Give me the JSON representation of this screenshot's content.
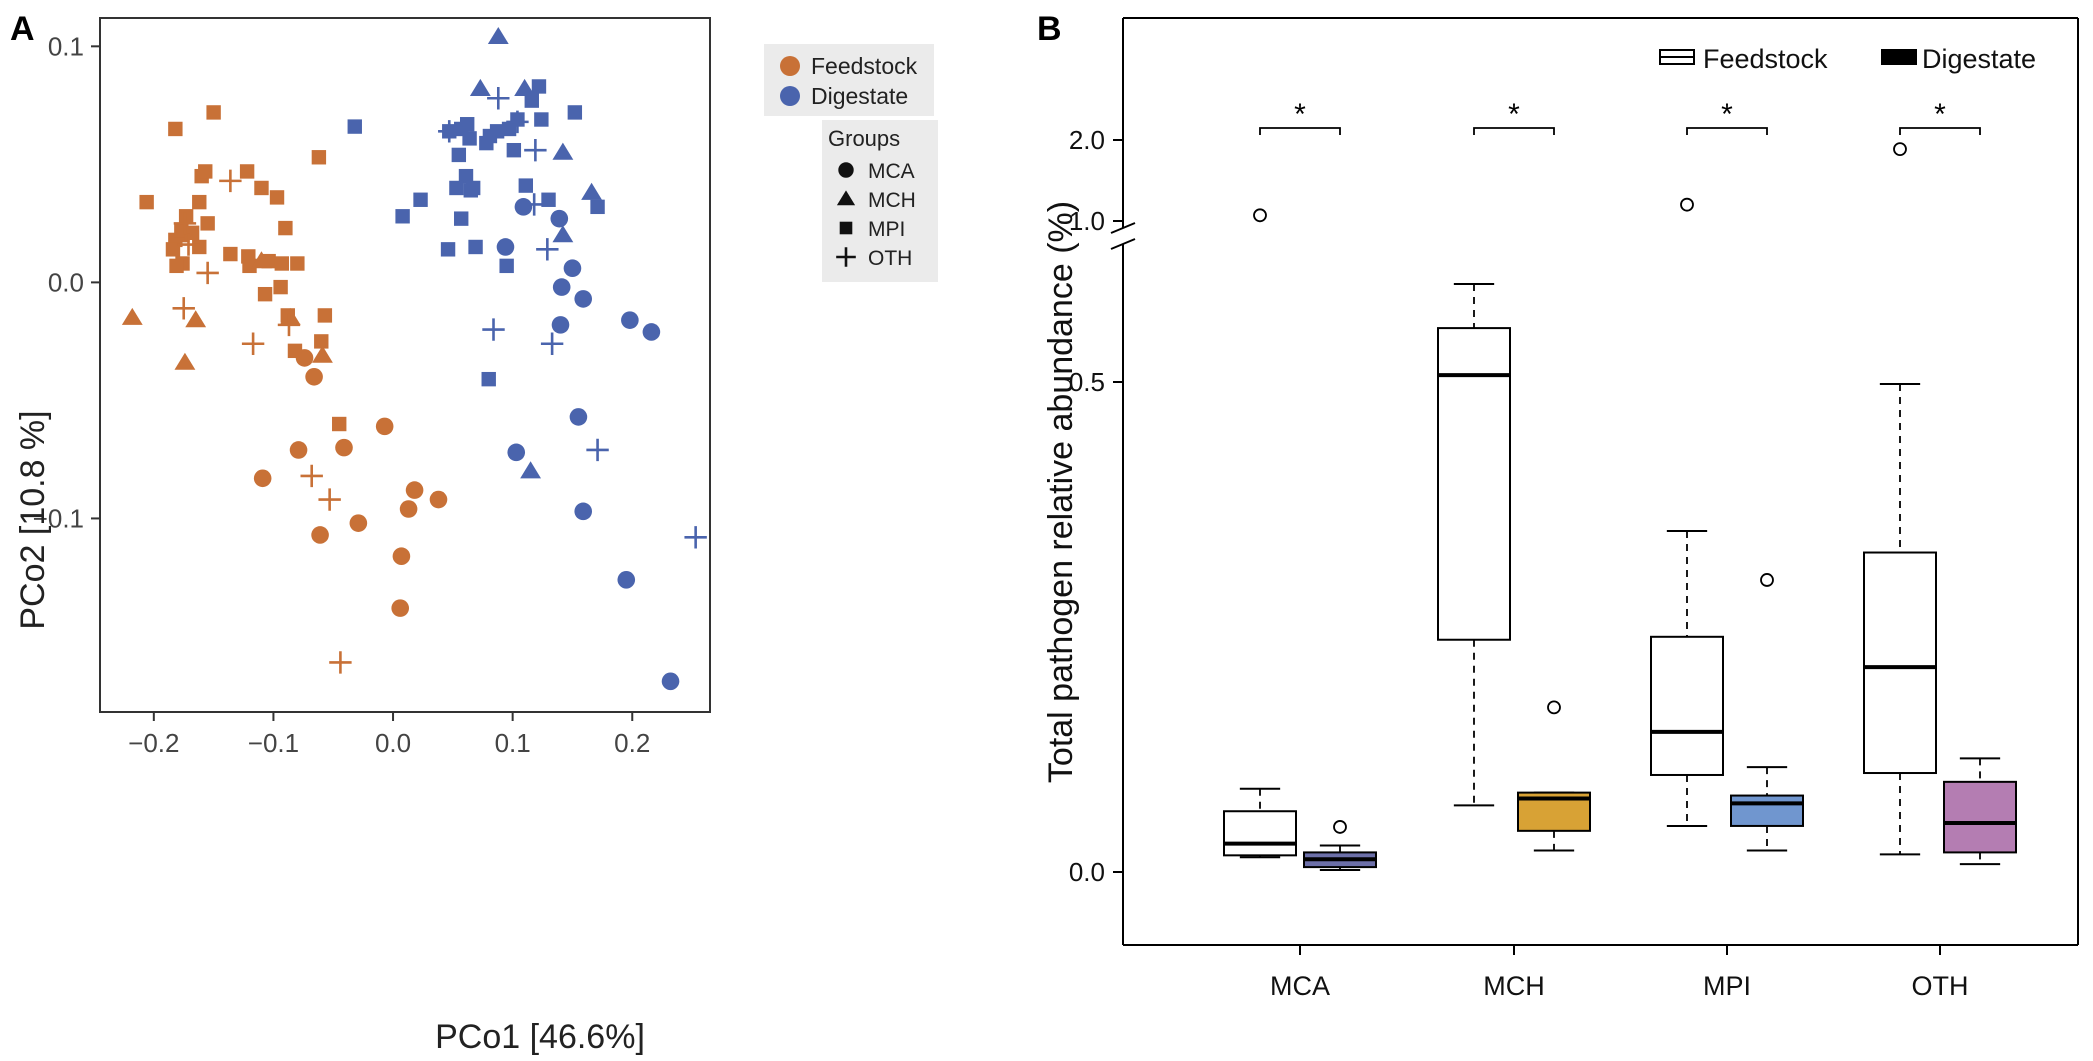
{
  "chart_data": [
    {
      "panel": "A",
      "type": "scatter",
      "xlabel": "PCo1   [46.6%]",
      "ylabel": "PCo2   [10.8 %]",
      "xlim": [
        -0.245,
        0.265
      ],
      "ylim": [
        -0.182,
        0.112
      ],
      "xticks": [
        -0.2,
        -0.1,
        0.0,
        0.1,
        0.2
      ],
      "xtick_labels": [
        "−0.2",
        "−0.1",
        "0.0",
        "0.1",
        "0.2"
      ],
      "yticks": [
        -0.1,
        0.0,
        0.1
      ],
      "ytick_labels": [
        "−0.1",
        "0.0",
        "0.1"
      ],
      "legend_color": {
        "placement": "top-right",
        "entries": [
          {
            "label": "Feedstock",
            "color": "#c87137"
          },
          {
            "label": "Digestate",
            "color": "#4a64ad"
          }
        ]
      },
      "legend_shape": {
        "title": "Groups",
        "entries": [
          {
            "label": "MCA",
            "shape": "circle"
          },
          {
            "label": "MCH",
            "shape": "triangle"
          },
          {
            "label": "MPI",
            "shape": "square"
          },
          {
            "label": "OTH",
            "shape": "plus"
          }
        ]
      },
      "series": [
        {
          "name": "Feedstock",
          "color": "#c87137",
          "points": [
            {
              "g": "MPI",
              "x": -0.206,
              "y": 0.034
            },
            {
              "g": "MPI",
              "x": -0.182,
              "y": 0.065
            },
            {
              "g": "MPI",
              "x": -0.15,
              "y": 0.072
            },
            {
              "g": "MPI",
              "x": -0.16,
              "y": 0.045
            },
            {
              "g": "MPI",
              "x": -0.157,
              "y": 0.047
            },
            {
              "g": "MPI",
              "x": -0.122,
              "y": 0.047
            },
            {
              "g": "MPI",
              "x": -0.11,
              "y": 0.04
            },
            {
              "g": "MPI",
              "x": -0.097,
              "y": 0.036
            },
            {
              "g": "MPI",
              "x": -0.09,
              "y": 0.023
            },
            {
              "g": "MPI",
              "x": -0.162,
              "y": 0.034
            },
            {
              "g": "MPI",
              "x": -0.173,
              "y": 0.028
            },
            {
              "g": "MPI",
              "x": -0.155,
              "y": 0.025
            },
            {
              "g": "MPI",
              "x": -0.162,
              "y": 0.015
            },
            {
              "g": "MPI",
              "x": -0.176,
              "y": 0.02
            },
            {
              "g": "MPI",
              "x": -0.182,
              "y": 0.018
            },
            {
              "g": "MPI",
              "x": -0.177,
              "y": 0.022
            },
            {
              "g": "MPI",
              "x": -0.168,
              "y": 0.021
            },
            {
              "g": "MPI",
              "x": -0.184,
              "y": 0.014
            },
            {
              "g": "MPI",
              "x": -0.176,
              "y": 0.008
            },
            {
              "g": "MPI",
              "x": -0.181,
              "y": 0.007
            },
            {
              "g": "MPI",
              "x": -0.136,
              "y": 0.012
            },
            {
              "g": "MPI",
              "x": -0.121,
              "y": 0.011
            },
            {
              "g": "MPI",
              "x": -0.12,
              "y": 0.007
            },
            {
              "g": "MPI",
              "x": -0.104,
              "y": 0.009
            },
            {
              "g": "MPI",
              "x": -0.094,
              "y": -0.002
            },
            {
              "g": "MPI",
              "x": -0.107,
              "y": -0.005
            },
            {
              "g": "MPI",
              "x": -0.08,
              "y": 0.008
            },
            {
              "g": "MPI",
              "x": -0.088,
              "y": -0.014
            },
            {
              "g": "MPI",
              "x": -0.057,
              "y": -0.014
            },
            {
              "g": "MPI",
              "x": -0.082,
              "y": -0.029
            },
            {
              "g": "MPI",
              "x": -0.06,
              "y": -0.025
            },
            {
              "g": "MPI",
              "x": -0.062,
              "y": 0.053
            },
            {
              "g": "MPI",
              "x": -0.045,
              "y": -0.06
            },
            {
              "g": "MPI",
              "x": -0.093,
              "y": 0.008
            },
            {
              "g": "MCH",
              "x": -0.218,
              "y": -0.015
            },
            {
              "g": "MCH",
              "x": -0.174,
              "y": -0.034
            },
            {
              "g": "MCH",
              "x": -0.165,
              "y": -0.016
            },
            {
              "g": "MCH",
              "x": -0.11,
              "y": 0.009
            },
            {
              "g": "MCH",
              "x": -0.086,
              "y": -0.015
            },
            {
              "g": "MCH",
              "x": -0.059,
              "y": -0.031
            },
            {
              "g": "OTH",
              "x": -0.136,
              "y": 0.043
            },
            {
              "g": "OTH",
              "x": -0.174,
              "y": 0.025
            },
            {
              "g": "OTH",
              "x": -0.171,
              "y": 0.016
            },
            {
              "g": "OTH",
              "x": -0.155,
              "y": 0.004
            },
            {
              "g": "OTH",
              "x": -0.175,
              "y": -0.011
            },
            {
              "g": "OTH",
              "x": -0.117,
              "y": -0.026
            },
            {
              "g": "OTH",
              "x": -0.087,
              "y": -0.018
            },
            {
              "g": "OTH",
              "x": -0.068,
              "y": -0.082
            },
            {
              "g": "OTH",
              "x": -0.053,
              "y": -0.092
            },
            {
              "g": "OTH",
              "x": -0.044,
              "y": -0.161
            },
            {
              "g": "MCA",
              "x": -0.074,
              "y": -0.032
            },
            {
              "g": "MCA",
              "x": -0.066,
              "y": -0.04
            },
            {
              "g": "MCA",
              "x": -0.079,
              "y": -0.071
            },
            {
              "g": "MCA",
              "x": -0.041,
              "y": -0.07
            },
            {
              "g": "MCA",
              "x": -0.007,
              "y": -0.061
            },
            {
              "g": "MCA",
              "x": -0.109,
              "y": -0.083
            },
            {
              "g": "MCA",
              "x": 0.018,
              "y": -0.088
            },
            {
              "g": "MCA",
              "x": 0.038,
              "y": -0.092
            },
            {
              "g": "MCA",
              "x": 0.013,
              "y": -0.096
            },
            {
              "g": "MCA",
              "x": -0.029,
              "y": -0.102
            },
            {
              "g": "MCA",
              "x": -0.061,
              "y": -0.107
            },
            {
              "g": "MCA",
              "x": 0.007,
              "y": -0.116
            },
            {
              "g": "MCA",
              "x": 0.006,
              "y": -0.138
            }
          ]
        },
        {
          "name": "Digestate",
          "color": "#4a64ad",
          "points": [
            {
              "g": "MCH",
              "x": 0.088,
              "y": 0.104
            },
            {
              "g": "MCH",
              "x": 0.073,
              "y": 0.082
            },
            {
              "g": "MCH",
              "x": 0.11,
              "y": 0.082
            },
            {
              "g": "MCH",
              "x": 0.142,
              "y": 0.055
            },
            {
              "g": "MCH",
              "x": 0.166,
              "y": 0.038
            },
            {
              "g": "MCH",
              "x": 0.142,
              "y": 0.02
            },
            {
              "g": "MCH",
              "x": 0.115,
              "y": -0.08
            },
            {
              "g": "MPI",
              "x": 0.122,
              "y": 0.083
            },
            {
              "g": "MPI",
              "x": 0.116,
              "y": 0.077
            },
            {
              "g": "MPI",
              "x": 0.152,
              "y": 0.072
            },
            {
              "g": "MPI",
              "x": 0.124,
              "y": 0.069
            },
            {
              "g": "MPI",
              "x": 0.104,
              "y": 0.069
            },
            {
              "g": "MPI",
              "x": 0.097,
              "y": 0.065
            },
            {
              "g": "MPI",
              "x": 0.087,
              "y": 0.064
            },
            {
              "g": "MPI",
              "x": 0.062,
              "y": 0.067
            },
            {
              "g": "MPI",
              "x": 0.057,
              "y": 0.065
            },
            {
              "g": "MPI",
              "x": 0.047,
              "y": 0.064
            },
            {
              "g": "MPI",
              "x": 0.081,
              "y": 0.062
            },
            {
              "g": "MPI",
              "x": 0.064,
              "y": 0.061
            },
            {
              "g": "MPI",
              "x": 0.078,
              "y": 0.059
            },
            {
              "g": "MPI",
              "x": 0.101,
              "y": 0.056
            },
            {
              "g": "MPI",
              "x": 0.055,
              "y": 0.054
            },
            {
              "g": "MPI",
              "x": 0.061,
              "y": 0.045
            },
            {
              "g": "MPI",
              "x": 0.067,
              "y": 0.04
            },
            {
              "g": "MPI",
              "x": 0.065,
              "y": 0.039
            },
            {
              "g": "MPI",
              "x": 0.053,
              "y": 0.04
            },
            {
              "g": "MPI",
              "x": 0.111,
              "y": 0.041
            },
            {
              "g": "MPI",
              "x": 0.13,
              "y": 0.035
            },
            {
              "g": "MPI",
              "x": 0.023,
              "y": 0.035
            },
            {
              "g": "MPI",
              "x": 0.008,
              "y": 0.028
            },
            {
              "g": "MPI",
              "x": 0.057,
              "y": 0.027
            },
            {
              "g": "MPI",
              "x": 0.069,
              "y": 0.015
            },
            {
              "g": "MPI",
              "x": 0.046,
              "y": 0.014
            },
            {
              "g": "MPI",
              "x": 0.095,
              "y": 0.007
            },
            {
              "g": "MPI",
              "x": 0.171,
              "y": 0.032
            },
            {
              "g": "MPI",
              "x": -0.032,
              "y": 0.066
            },
            {
              "g": "MPI",
              "x": 0.08,
              "y": -0.041
            },
            {
              "g": "OTH",
              "x": 0.088,
              "y": 0.078
            },
            {
              "g": "OTH",
              "x": 0.104,
              "y": 0.068
            },
            {
              "g": "OTH",
              "x": 0.047,
              "y": 0.064
            },
            {
              "g": "OTH",
              "x": 0.119,
              "y": 0.056
            },
            {
              "g": "OTH",
              "x": 0.118,
              "y": 0.033
            },
            {
              "g": "OTH",
              "x": 0.129,
              "y": 0.014
            },
            {
              "g": "OTH",
              "x": 0.084,
              "y": -0.02
            },
            {
              "g": "OTH",
              "x": 0.133,
              "y": -0.026
            },
            {
              "g": "OTH",
              "x": 0.171,
              "y": -0.071
            },
            {
              "g": "OTH",
              "x": 0.253,
              "y": -0.108
            },
            {
              "g": "MCA",
              "x": 0.109,
              "y": 0.032
            },
            {
              "g": "MCA",
              "x": 0.139,
              "y": 0.027
            },
            {
              "g": "MCA",
              "x": 0.094,
              "y": 0.015
            },
            {
              "g": "MCA",
              "x": 0.15,
              "y": 0.006
            },
            {
              "g": "MCA",
              "x": 0.141,
              "y": -0.002
            },
            {
              "g": "MCA",
              "x": 0.159,
              "y": -0.007
            },
            {
              "g": "MCA",
              "x": 0.14,
              "y": -0.018
            },
            {
              "g": "MCA",
              "x": 0.198,
              "y": -0.016
            },
            {
              "g": "MCA",
              "x": 0.216,
              "y": -0.021
            },
            {
              "g": "MCA",
              "x": 0.155,
              "y": -0.057
            },
            {
              "g": "MCA",
              "x": 0.103,
              "y": -0.072
            },
            {
              "g": "MCA",
              "x": 0.159,
              "y": -0.097
            },
            {
              "g": "MCA",
              "x": 0.195,
              "y": -0.126
            },
            {
              "g": "MCA",
              "x": 0.232,
              "y": -0.169
            }
          ]
        }
      ]
    },
    {
      "panel": "B",
      "type": "box",
      "ylabel": "Total pathogen relative abundance (%)",
      "yticks_lower": [
        0.0,
        0.5
      ],
      "ytick_labels_lower": [
        "0.0",
        "0.5"
      ],
      "yticks_upper": [
        1.0,
        2.0
      ],
      "ytick_labels_upper": [
        "1.0",
        "2.0"
      ],
      "axis_break": "between 0.62 and 1.0",
      "categories": [
        "MCA",
        "MCH",
        "MPI",
        "OTH"
      ],
      "significance": [
        "*",
        "*",
        "*",
        "*"
      ],
      "legend": {
        "placement": "top-right",
        "entries": [
          {
            "label": "Feedstock",
            "style": "open box"
          },
          {
            "label": "Digestate",
            "style": "filled box"
          }
        ]
      },
      "series": [
        {
          "name": "Feedstock",
          "fill": "#ffffff",
          "boxes": [
            {
              "whisker_low": 0.015,
              "q1": 0.017,
              "median": 0.029,
              "q3": 0.062,
              "whisker_high": 0.085,
              "outliers": [
                1.05
              ]
            },
            {
              "whisker_low": 0.068,
              "q1": 0.237,
              "median": 0.507,
              "q3": 0.555,
              "whisker_high": 0.6,
              "outliers": []
            },
            {
              "whisker_low": 0.047,
              "q1": 0.099,
              "median": 0.143,
              "q3": 0.24,
              "whisker_high": 0.348,
              "outliers": [
                1.15
              ]
            },
            {
              "whisker_low": 0.018,
              "q1": 0.101,
              "median": 0.209,
              "q3": 0.326,
              "whisker_high": 0.498,
              "outliers": [
                1.85
              ]
            }
          ]
        },
        {
          "name": "Digestate",
          "boxes": [
            {
              "fill": "#6c6fa8",
              "whisker_low": 0.002,
              "q1": 0.005,
              "median": 0.013,
              "q3": 0.02,
              "whisker_high": 0.027,
              "outliers": [
                0.046
              ]
            },
            {
              "fill": "#d8a235",
              "whisker_low": 0.022,
              "q1": 0.042,
              "median": 0.075,
              "q3": 0.081,
              "whisker_high": 0.081,
              "outliers": [
                0.168
              ]
            },
            {
              "fill": "#7096cf",
              "whisker_low": 0.022,
              "q1": 0.047,
              "median": 0.07,
              "q3": 0.078,
              "whisker_high": 0.107,
              "outliers": [
                0.298
              ]
            },
            {
              "fill": "#b47db2",
              "whisker_low": 0.008,
              "q1": 0.02,
              "median": 0.05,
              "q3": 0.092,
              "whisker_high": 0.116,
              "outliers": []
            }
          ]
        }
      ]
    }
  ]
}
